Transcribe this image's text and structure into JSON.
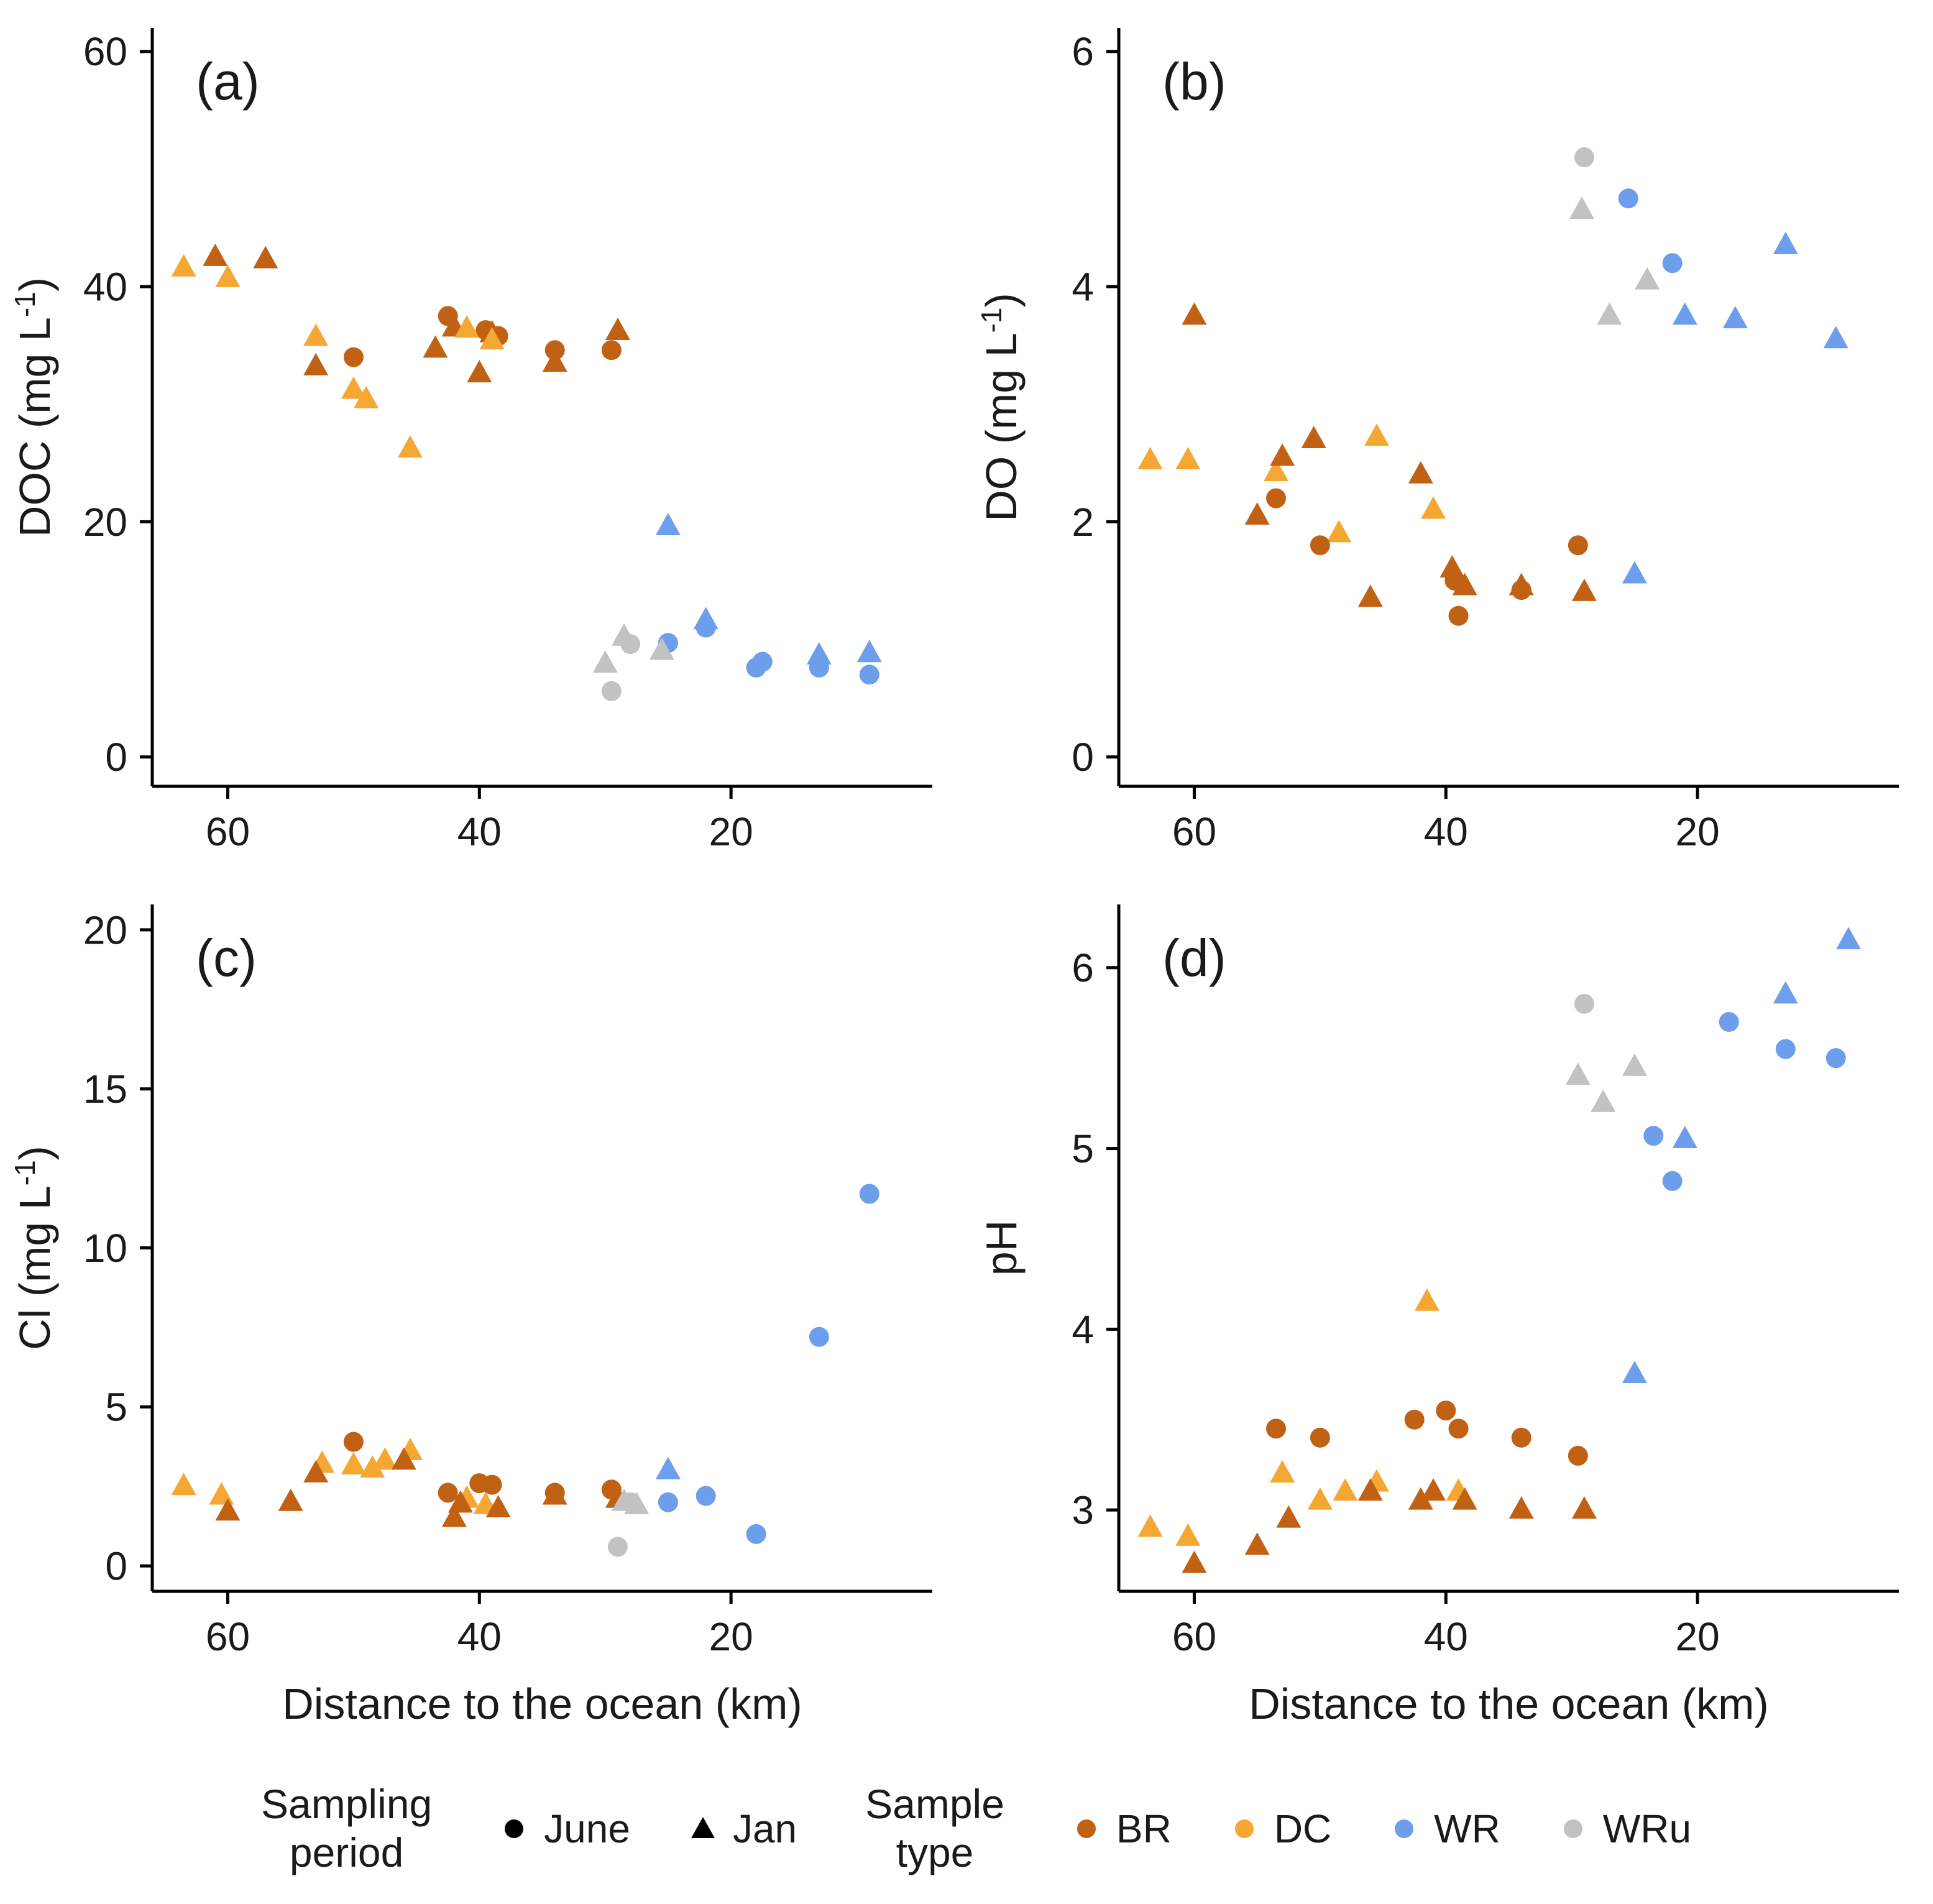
{
  "colors": {
    "BR": "#C06114",
    "DC": "#F5A733",
    "WR": "#6D9EEB",
    "WRu": "#C2C2C2",
    "legend_marker": "#000000"
  },
  "legend": {
    "sampling_period": {
      "line1": "Sampling",
      "line2": "period",
      "items": [
        {
          "label": "June",
          "marker": "circle"
        },
        {
          "label": "Jan",
          "marker": "triangle"
        }
      ]
    },
    "sample_type": {
      "line1": "Sample",
      "line2": "type",
      "items": [
        {
          "label": "BR",
          "type": "BR"
        },
        {
          "label": "DC",
          "type": "DC"
        },
        {
          "label": "WR",
          "type": "WR"
        },
        {
          "label": "WRu",
          "type": "WRu"
        }
      ]
    }
  },
  "chart_data": [
    {
      "type": "scatter",
      "panel_label": "(a)",
      "ylabel": {
        "pre": "DOC (mg L",
        "sup": "-1",
        "post": ")"
      },
      "xlabel": "",
      "x_reversed": true,
      "xlim": [
        66,
        4
      ],
      "xticks": [
        60,
        40,
        20
      ],
      "ylim": [
        -2.5,
        62
      ],
      "yticks": [
        0,
        20,
        40,
        60
      ],
      "series": [
        {
          "type": "BR",
          "period": "Jan",
          "points": [
            [
              61,
              42.5
            ],
            [
              57,
              42.3
            ],
            [
              53,
              33.2
            ],
            [
              43.5,
              34.7
            ],
            [
              42,
              36.5
            ],
            [
              40,
              32.6
            ],
            [
              39,
              36.0
            ],
            [
              34,
              33.5
            ],
            [
              29,
              36.2
            ]
          ]
        },
        {
          "type": "BR",
          "period": "June",
          "points": [
            [
              50,
              34.0
            ],
            [
              42.5,
              37.5
            ],
            [
              39.5,
              36.3
            ],
            [
              38.5,
              35.8
            ],
            [
              34,
              34.6
            ],
            [
              29.5,
              34.6
            ]
          ]
        },
        {
          "type": "DC",
          "period": "Jan",
          "points": [
            [
              63.5,
              41.6
            ],
            [
              60,
              40.7
            ],
            [
              53,
              35.7
            ],
            [
              50,
              31.2
            ],
            [
              49,
              30.4
            ],
            [
              45.5,
              26.2
            ],
            [
              41,
              36.4
            ],
            [
              39,
              35.4
            ]
          ]
        },
        {
          "type": "WR",
          "period": "Jan",
          "points": [
            [
              25,
              19.6
            ],
            [
              22,
              11.6
            ],
            [
              13,
              8.6
            ],
            [
              9,
              8.8
            ]
          ]
        },
        {
          "type": "WR",
          "period": "June",
          "points": [
            [
              25,
              9.7
            ],
            [
              22,
              11.0
            ],
            [
              18,
              7.6
            ],
            [
              17.5,
              8.1
            ],
            [
              13,
              7.6
            ],
            [
              9,
              7.0
            ]
          ]
        },
        {
          "type": "WRu",
          "period": "Jan",
          "points": [
            [
              30,
              7.9
            ],
            [
              28.5,
              10.2
            ],
            [
              25.5,
              9.0
            ]
          ]
        },
        {
          "type": "WRu",
          "period": "June",
          "points": [
            [
              29.5,
              5.6
            ],
            [
              28,
              9.6
            ]
          ]
        }
      ]
    },
    {
      "type": "scatter",
      "panel_label": "(b)",
      "ylabel": {
        "pre": "DO (mg L",
        "sup": "-1",
        "post": ")"
      },
      "xlabel": "",
      "x_reversed": true,
      "xlim": [
        66,
        4
      ],
      "xticks": [
        60,
        40,
        20
      ],
      "ylim": [
        -0.25,
        6.2
      ],
      "yticks": [
        0,
        2,
        4,
        6
      ],
      "series": [
        {
          "type": "DC",
          "period": "Jan",
          "points": [
            [
              63.5,
              2.52
            ],
            [
              60.5,
              2.52
            ],
            [
              53.5,
              2.42
            ],
            [
              48.5,
              1.9
            ],
            [
              45.5,
              2.72
            ],
            [
              41,
              2.1
            ]
          ]
        },
        {
          "type": "BR",
          "period": "Jan",
          "points": [
            [
              60,
              3.75
            ],
            [
              55,
              2.05
            ],
            [
              53,
              2.55
            ],
            [
              50.5,
              2.7
            ],
            [
              46,
              1.35
            ],
            [
              42,
              2.4
            ],
            [
              39.5,
              1.6
            ],
            [
              38.5,
              1.45
            ],
            [
              34,
              1.45
            ],
            [
              29,
              1.4
            ]
          ]
        },
        {
          "type": "BR",
          "period": "June",
          "points": [
            [
              53.5,
              2.2
            ],
            [
              50,
              1.8
            ],
            [
              39.3,
              1.5
            ],
            [
              39,
              1.2
            ],
            [
              34,
              1.42
            ],
            [
              29.5,
              1.8
            ]
          ]
        },
        {
          "type": "WR",
          "period": "Jan",
          "points": [
            [
              25,
              1.55
            ],
            [
              21,
              3.75
            ],
            [
              17,
              3.72
            ],
            [
              13,
              4.35
            ],
            [
              9,
              3.55
            ]
          ]
        },
        {
          "type": "WR",
          "period": "June",
          "points": [
            [
              25.5,
              4.75
            ],
            [
              22,
              4.2
            ]
          ]
        },
        {
          "type": "WRu",
          "period": "Jan",
          "points": [
            [
              29.2,
              4.65
            ],
            [
              27,
              3.75
            ],
            [
              24,
              4.05
            ]
          ]
        },
        {
          "type": "WRu",
          "period": "June",
          "points": [
            [
              29,
              5.1
            ]
          ]
        }
      ]
    },
    {
      "type": "scatter",
      "panel_label": "(c)",
      "ylabel": {
        "pre": "Cl (mg L",
        "sup": "-1",
        "post": ")"
      },
      "xlabel": "Distance to the ocean (km)",
      "x_reversed": true,
      "xlim": [
        66,
        4
      ],
      "xticks": [
        60,
        40,
        20
      ],
      "ylim": [
        -0.8,
        20.8
      ],
      "yticks": [
        0,
        5,
        10,
        15,
        20
      ],
      "series": [
        {
          "type": "DC",
          "period": "Jan",
          "points": [
            [
              63.5,
              2.5
            ],
            [
              60.5,
              2.2
            ],
            [
              52.5,
              3.2
            ],
            [
              50,
              3.15
            ],
            [
              48.5,
              3.05
            ],
            [
              47.5,
              3.3
            ],
            [
              45.5,
              3.6
            ],
            [
              41,
              2.1
            ],
            [
              39.5,
              1.9
            ]
          ]
        },
        {
          "type": "BR",
          "period": "Jan",
          "points": [
            [
              60,
              1.7
            ],
            [
              55,
              2.0
            ],
            [
              53,
              2.9
            ],
            [
              46,
              3.3
            ],
            [
              42,
              1.5
            ],
            [
              41.5,
              1.95
            ],
            [
              38.5,
              1.8
            ],
            [
              34,
              2.2
            ],
            [
              29,
              2.1
            ]
          ]
        },
        {
          "type": "BR",
          "period": "June",
          "points": [
            [
              50,
              3.9
            ],
            [
              42.5,
              2.3
            ],
            [
              40,
              2.6
            ],
            [
              39,
              2.55
            ],
            [
              34,
              2.3
            ],
            [
              29.5,
              2.4
            ]
          ]
        },
        {
          "type": "WR",
          "period": "Jan",
          "points": [
            [
              25,
              3.0
            ]
          ]
        },
        {
          "type": "WR",
          "period": "June",
          "points": [
            [
              25,
              2.0
            ],
            [
              22,
              2.2
            ],
            [
              18,
              1.0
            ],
            [
              13,
              7.2
            ],
            [
              9,
              11.7
            ]
          ]
        },
        {
          "type": "WRu",
          "period": "Jan",
          "points": [
            [
              28.5,
              2.0
            ],
            [
              27.5,
              1.9
            ]
          ]
        },
        {
          "type": "WRu",
          "period": "June",
          "points": [
            [
              29,
              0.6
            ],
            [
              28,
              2.0
            ]
          ]
        }
      ]
    },
    {
      "type": "scatter",
      "panel_label": "(d)",
      "ylabel": {
        "pre": "pH"
      },
      "xlabel": "Distance to the ocean (km)",
      "x_reversed": true,
      "xlim": [
        66,
        4
      ],
      "xticks": [
        60,
        40,
        20
      ],
      "ylim": [
        2.55,
        6.35
      ],
      "yticks": [
        3,
        4,
        5,
        6
      ],
      "series": [
        {
          "type": "DC",
          "period": "Jan",
          "points": [
            [
              63.5,
              2.9
            ],
            [
              60.5,
              2.85
            ],
            [
              53,
              3.2
            ],
            [
              50,
              3.05
            ],
            [
              48,
              3.1
            ],
            [
              45.5,
              3.15
            ],
            [
              41.5,
              4.15
            ],
            [
              39,
              3.1
            ]
          ]
        },
        {
          "type": "BR",
          "period": "Jan",
          "points": [
            [
              60,
              2.7
            ],
            [
              55,
              2.8
            ],
            [
              52.5,
              2.95
            ],
            [
              46,
              3.1
            ],
            [
              42,
              3.05
            ],
            [
              41,
              3.1
            ],
            [
              38.5,
              3.05
            ],
            [
              34,
              3.0
            ],
            [
              29,
              3.0
            ]
          ]
        },
        {
          "type": "BR",
          "period": "June",
          "points": [
            [
              53.5,
              3.45
            ],
            [
              50,
              3.4
            ],
            [
              42.5,
              3.5
            ],
            [
              40,
              3.55
            ],
            [
              39,
              3.45
            ],
            [
              34,
              3.4
            ],
            [
              29.5,
              3.3
            ]
          ]
        },
        {
          "type": "WR",
          "period": "Jan",
          "points": [
            [
              25,
              3.75
            ],
            [
              21,
              5.05
            ],
            [
              13,
              5.85
            ],
            [
              8,
              6.15
            ]
          ]
        },
        {
          "type": "WR",
          "period": "June",
          "points": [
            [
              23.5,
              5.07
            ],
            [
              22,
              4.82
            ],
            [
              17.5,
              5.7
            ],
            [
              13,
              5.55
            ],
            [
              9,
              5.5
            ]
          ]
        },
        {
          "type": "WRu",
          "period": "Jan",
          "points": [
            [
              29.5,
              5.4
            ],
            [
              27.5,
              5.25
            ],
            [
              25,
              5.45
            ]
          ]
        },
        {
          "type": "WRu",
          "period": "June",
          "points": [
            [
              29,
              5.8
            ]
          ]
        }
      ]
    }
  ]
}
